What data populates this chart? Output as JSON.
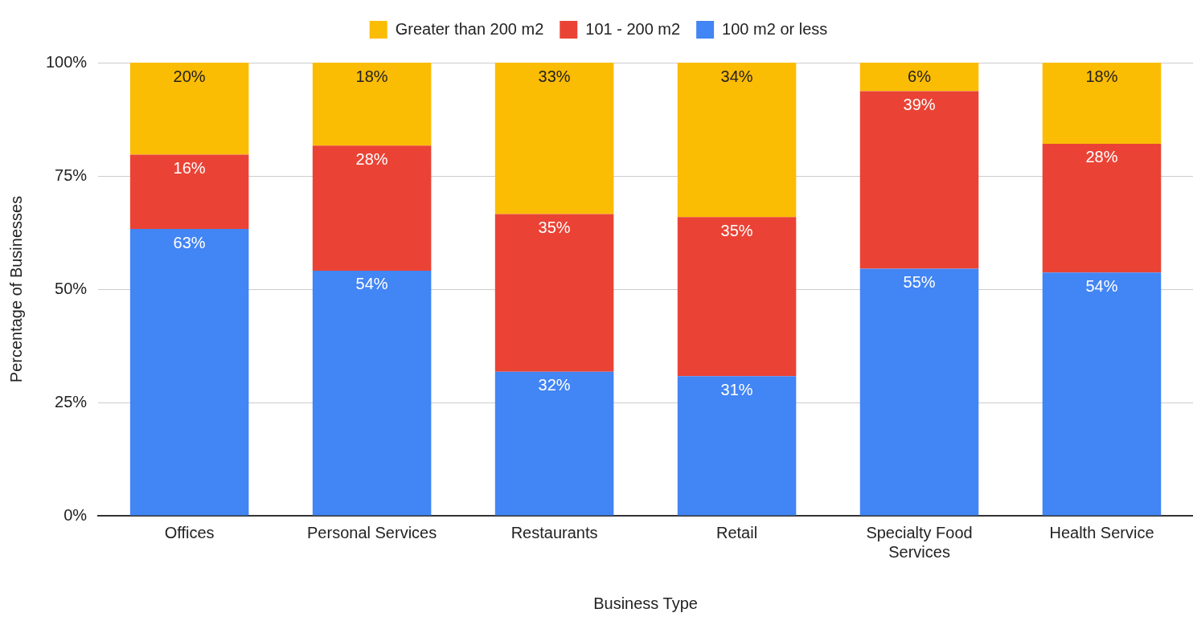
{
  "chart_data": {
    "type": "bar",
    "stacked": true,
    "xlabel": "Business Type",
    "ylabel": "Percentage of Businesses",
    "categories": [
      "Offices",
      "Personal Services",
      "Restaurants",
      "Retail",
      "Specialty Food Services",
      "Health Service"
    ],
    "series": [
      {
        "name": "100 m2 or less",
        "color": "#4285f4",
        "values": [
          63.3,
          54.1,
          31.8,
          30.8,
          54.5,
          53.7
        ],
        "value_labels": [
          "63%",
          "54%",
          "32%",
          "31%",
          "55%",
          "54%"
        ]
      },
      {
        "name": "101 - 200 m2",
        "color": "#ea4335",
        "values": [
          16.4,
          27.6,
          34.8,
          35.1,
          39.2,
          28.4
        ],
        "value_labels": [
          "16%",
          "28%",
          "35%",
          "35%",
          "39%",
          "28%"
        ]
      },
      {
        "name": "Greater than 200 m2",
        "color": "#fbbc04",
        "values": [
          20.3,
          18.3,
          33.4,
          34.1,
          6.3,
          17.9
        ],
        "value_labels": [
          "20%",
          "18%",
          "33%",
          "34%",
          "6%",
          "18%"
        ]
      }
    ],
    "ylim": [
      0,
      100
    ],
    "yticks": [
      {
        "value": 0,
        "label": "0%"
      },
      {
        "value": 25,
        "label": "25%"
      },
      {
        "value": 50,
        "label": "50%"
      },
      {
        "value": 75,
        "label": "75%"
      },
      {
        "value": 100,
        "label": "100%"
      }
    ],
    "grid": "y",
    "legend": "top"
  }
}
